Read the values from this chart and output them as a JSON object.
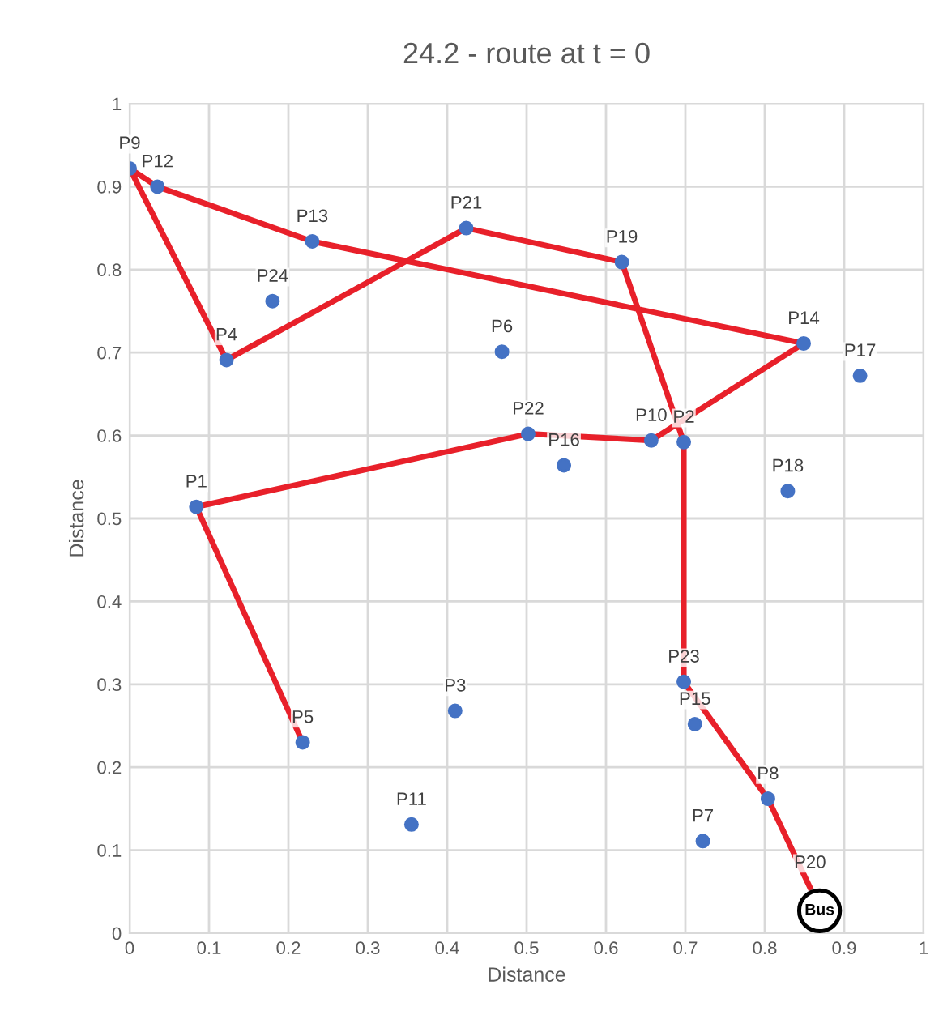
{
  "chart_data": {
    "type": "scatter",
    "title": "24.2 - route at t = 0",
    "xlabel": "Distance",
    "ylabel": "Distance",
    "xlim": [
      0,
      1
    ],
    "ylim": [
      0,
      1
    ],
    "xticks": [
      0,
      0.1,
      0.2,
      0.3,
      0.4,
      0.5,
      0.6,
      0.7,
      0.8,
      0.9,
      1
    ],
    "yticks": [
      0,
      0.1,
      0.2,
      0.3,
      0.4,
      0.5,
      0.6,
      0.7,
      0.8,
      0.9,
      1
    ],
    "grid": true,
    "legend": false,
    "series": [
      {
        "type": "line",
        "color": "#e8202a",
        "marker": "none",
        "line_style": "solid",
        "x": [
          0.857,
          0.804,
          0.698,
          0.698,
          0.62,
          0.424,
          0.122,
          0.0,
          0.035,
          0.23,
          0.849,
          0.657,
          0.502,
          0.084,
          0.218
        ],
        "values": [
          0.055,
          0.162,
          0.303,
          0.592,
          0.809,
          0.85,
          0.691,
          0.922,
          0.9,
          0.834,
          0.711,
          0.594,
          0.602,
          0.514,
          0.23
        ]
      },
      {
        "color": "#4472c4",
        "marker": "circle",
        "x": [
          0.084,
          0.698,
          0.41,
          0.122,
          0.218,
          0.469,
          0.722,
          0.804,
          0.0,
          0.657,
          0.355,
          0.035,
          0.23,
          0.849,
          0.712,
          0.547,
          0.92,
          0.829,
          0.62,
          0.424,
          0.502,
          0.698,
          0.18
        ],
        "values": [
          0.514,
          0.592,
          0.268,
          0.691,
          0.23,
          0.701,
          0.111,
          0.162,
          0.922,
          0.594,
          0.131,
          0.9,
          0.834,
          0.711,
          0.252,
          0.564,
          0.672,
          0.533,
          0.809,
          0.85,
          0.602,
          0.303,
          0.762
        ]
      }
    ],
    "annotations": [
      {
        "text": "P1",
        "x": 0.084,
        "y": 0.514
      },
      {
        "text": "P2",
        "x": 0.698,
        "y": 0.592
      },
      {
        "text": "P3",
        "x": 0.41,
        "y": 0.268
      },
      {
        "text": "P4",
        "x": 0.122,
        "y": 0.691
      },
      {
        "text": "P5",
        "x": 0.218,
        "y": 0.23
      },
      {
        "text": "P6",
        "x": 0.469,
        "y": 0.701
      },
      {
        "text": "P7",
        "x": 0.722,
        "y": 0.111
      },
      {
        "text": "P8",
        "x": 0.804,
        "y": 0.162
      },
      {
        "text": "P9",
        "x": 0.0,
        "y": 0.922
      },
      {
        "text": "P10",
        "x": 0.657,
        "y": 0.594
      },
      {
        "text": "P11",
        "x": 0.355,
        "y": 0.131
      },
      {
        "text": "P12",
        "x": 0.035,
        "y": 0.9
      },
      {
        "text": "P13",
        "x": 0.23,
        "y": 0.834
      },
      {
        "text": "P14",
        "x": 0.849,
        "y": 0.711
      },
      {
        "text": "P15",
        "x": 0.712,
        "y": 0.252
      },
      {
        "text": "P16",
        "x": 0.547,
        "y": 0.564
      },
      {
        "text": "P17",
        "x": 0.92,
        "y": 0.672
      },
      {
        "text": "P18",
        "x": 0.829,
        "y": 0.533
      },
      {
        "text": "P19",
        "x": 0.62,
        "y": 0.809
      },
      {
        "text": "P20",
        "x": 0.857,
        "y": 0.055
      },
      {
        "text": "P21",
        "x": 0.424,
        "y": 0.85
      },
      {
        "text": "P22",
        "x": 0.502,
        "y": 0.602
      },
      {
        "text": "P23",
        "x": 0.698,
        "y": 0.303
      },
      {
        "text": "P24",
        "x": 0.18,
        "y": 0.762
      },
      {
        "text": "Bus",
        "x": 0.869,
        "y": 0.027
      }
    ]
  }
}
